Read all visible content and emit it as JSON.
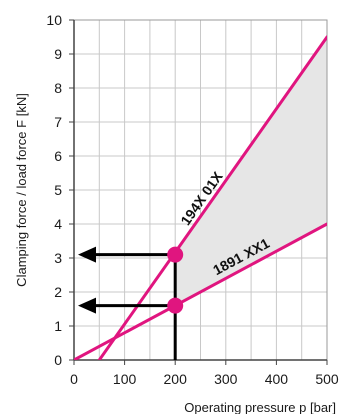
{
  "chart_data": {
    "type": "line",
    "xlabel": "Operating pressure p [bar]",
    "ylabel": "Clamping force / load force F [kN]",
    "xlim": [
      0,
      500
    ],
    "ylim": [
      0,
      10
    ],
    "xticks": [
      "0",
      "100",
      "200",
      "300",
      "400",
      "500"
    ],
    "yticks": [
      "0",
      "1",
      "2",
      "3",
      "4",
      "5",
      "6",
      "7",
      "8",
      "9",
      "10"
    ],
    "grid": true,
    "series": [
      {
        "name": "194X 01X",
        "x": [
          50,
          500
        ],
        "y": [
          0,
          9.5
        ],
        "color": "#e0157f"
      },
      {
        "name": "1891 XX1",
        "x": [
          0,
          500
        ],
        "y": [
          0,
          4.0
        ],
        "color": "#e0157f"
      }
    ],
    "shaded_region": {
      "between": [
        "194X 01X",
        "1891 XX1"
      ],
      "x_from": 200,
      "x_to": 500,
      "color": "#e6e6e6"
    },
    "markers": [
      {
        "x": 200,
        "y": 3.1,
        "color": "#e0157f"
      },
      {
        "x": 200,
        "y": 1.6,
        "color": "#e0157f"
      }
    ],
    "reading_arrows": [
      {
        "x": 200,
        "y": 3.1
      },
      {
        "x": 200,
        "y": 1.6
      }
    ]
  }
}
